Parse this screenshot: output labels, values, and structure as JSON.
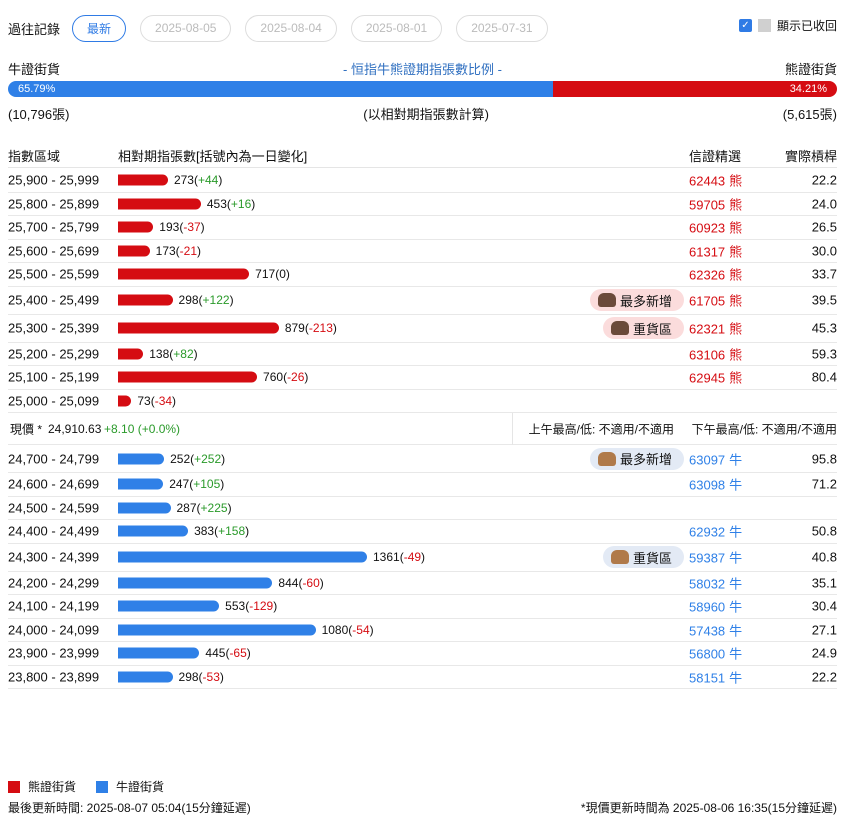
{
  "history": {
    "label": "過往記錄",
    "tabs": [
      "最新",
      "2025-08-05",
      "2025-08-04",
      "2025-08-01",
      "2025-07-31"
    ],
    "active": 0
  },
  "show_recalled": {
    "label": "顯示已收回",
    "checked": true
  },
  "ratio": {
    "bull_label": "牛證街貨",
    "bear_label": "熊證街貨",
    "title": "- 恒指牛熊證期指張數比例 -",
    "bull_pct": 65.79,
    "bull_pct_text": "65.79%",
    "bear_pct_text": "34.21%",
    "bull_count": "(10,796張)",
    "bear_count": "(5,615張)",
    "note": "(以相對期指張數計算)"
  },
  "colors": {
    "bull": "#2f80e7",
    "bear": "#d50c12",
    "bull_badge_bg": "#e3eaf5",
    "bear_badge_bg": "#fbdcdc"
  },
  "table": {
    "headers": {
      "range": "指數區域",
      "contracts": "相對期指張數[括號內為一日變化]",
      "pick": "信證精選",
      "leverage": "實際槓桿"
    },
    "bear_rows": [
      {
        "range": "25,900 - 25,999",
        "value": 273,
        "change": "+44",
        "code": "62443",
        "type": "熊",
        "leverage": "22.2"
      },
      {
        "range": "25,800 - 25,899",
        "value": 453,
        "change": "+16",
        "code": "59705",
        "type": "熊",
        "leverage": "24.0"
      },
      {
        "range": "25,700 - 25,799",
        "value": 193,
        "change": "-37",
        "code": "60923",
        "type": "熊",
        "leverage": "26.5"
      },
      {
        "range": "25,600 - 25,699",
        "value": 173,
        "change": "-21",
        "code": "61317",
        "type": "熊",
        "leverage": "30.0"
      },
      {
        "range": "25,500 - 25,599",
        "value": 717,
        "change": "0",
        "code": "62326",
        "type": "熊",
        "leverage": "33.7"
      },
      {
        "range": "25,400 - 25,499",
        "value": 298,
        "change": "+122",
        "badge": "最多新增",
        "code": "61705",
        "type": "熊",
        "leverage": "39.5"
      },
      {
        "range": "25,300 - 25,399",
        "value": 879,
        "change": "-213",
        "badge": "重貨區",
        "code": "62321",
        "type": "熊",
        "leverage": "45.3"
      },
      {
        "range": "25,200 - 25,299",
        "value": 138,
        "change": "+82",
        "code": "63106",
        "type": "熊",
        "leverage": "59.3"
      },
      {
        "range": "25,100 - 25,199",
        "value": 760,
        "change": "-26",
        "code": "62945",
        "type": "熊",
        "leverage": "80.4"
      },
      {
        "range": "25,000 - 25,099",
        "value": 73,
        "change": "-34"
      }
    ],
    "current": {
      "label": "現價 *",
      "price": "24,910.63",
      "change": "+8.10 (+0.0%)",
      "am": "上午最高/低: 不適用/不適用",
      "pm": "下午最高/低: 不適用/不適用"
    },
    "bull_rows": [
      {
        "range": "24,700 - 24,799",
        "value": 252,
        "change": "+252",
        "badge": "最多新增",
        "code": "63097",
        "type": "牛",
        "leverage": "95.8"
      },
      {
        "range": "24,600 - 24,699",
        "value": 247,
        "change": "+105",
        "code": "63098",
        "type": "牛",
        "leverage": "71.2"
      },
      {
        "range": "24,500 - 24,599",
        "value": 287,
        "change": "+225"
      },
      {
        "range": "24,400 - 24,499",
        "value": 383,
        "change": "+158",
        "code": "62932",
        "type": "牛",
        "leverage": "50.8"
      },
      {
        "range": "24,300 - 24,399",
        "value": 1361,
        "change": "-49",
        "badge": "重貨區",
        "code": "59387",
        "type": "牛",
        "leverage": "40.8"
      },
      {
        "range": "24,200 - 24,299",
        "value": 844,
        "change": "-60",
        "code": "58032",
        "type": "牛",
        "leverage": "35.1"
      },
      {
        "range": "24,100 - 24,199",
        "value": 553,
        "change": "-129",
        "code": "58960",
        "type": "牛",
        "leverage": "30.4"
      },
      {
        "range": "24,000 - 24,099",
        "value": 1080,
        "change": "-54",
        "code": "57438",
        "type": "牛",
        "leverage": "27.1"
      },
      {
        "range": "23,900 - 23,999",
        "value": 445,
        "change": "-65",
        "code": "56800",
        "type": "牛",
        "leverage": "24.9"
      },
      {
        "range": "23,800 - 23,899",
        "value": 298,
        "change": "-53",
        "code": "58151",
        "type": "牛",
        "leverage": "22.2"
      }
    ]
  },
  "legend": {
    "bear": "熊證街貨",
    "bull": "牛證街貨"
  },
  "footer": {
    "updated": "最後更新時間: 2025-08-07 05:04(15分鐘延遲)",
    "price_updated": "*現價更新時間為 2025-08-06 16:35(15分鐘延遲)"
  }
}
